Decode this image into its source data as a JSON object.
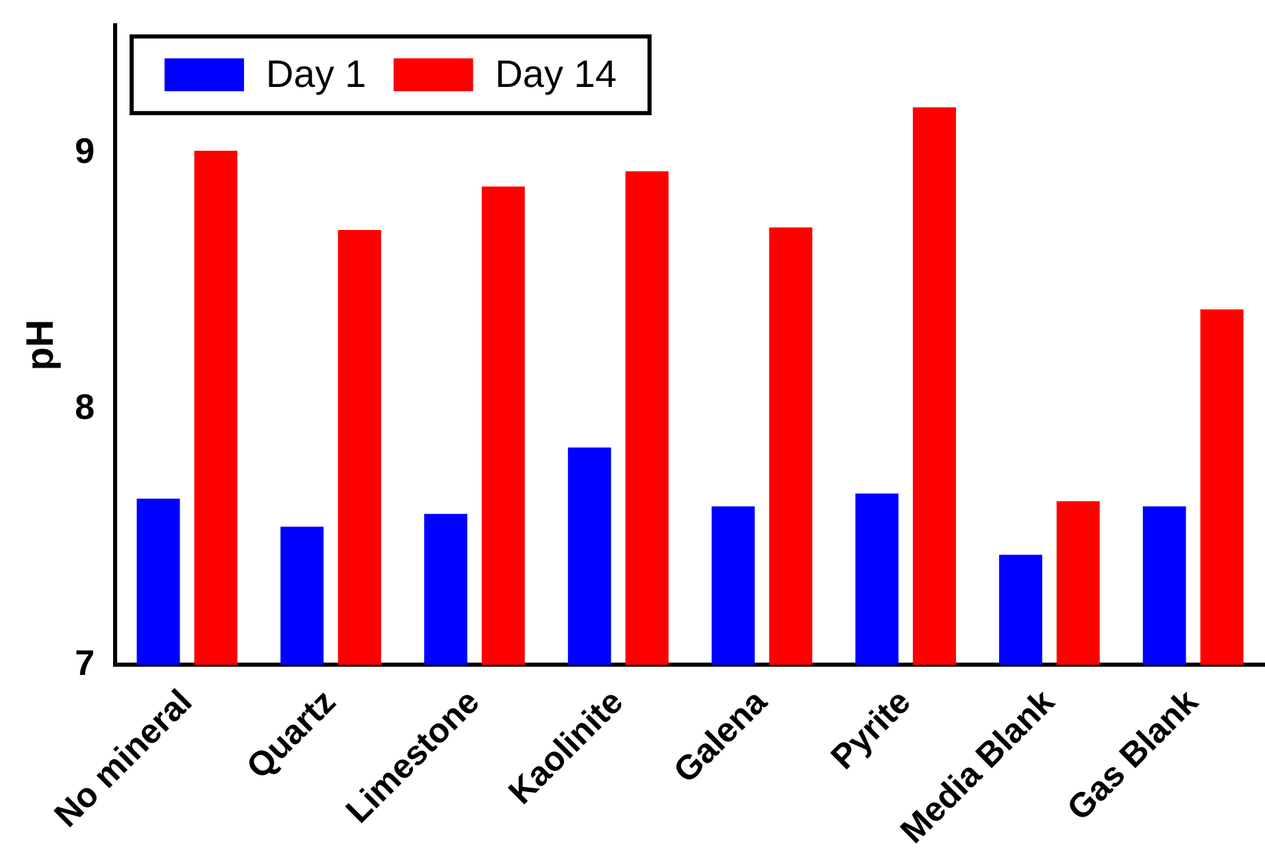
{
  "chart_data": {
    "type": "bar",
    "ylabel": "pH",
    "categories": [
      "No mineral",
      "Quartz",
      "Limestone",
      "Kaolinite",
      "Galena",
      "Pyrite",
      "Media Blank",
      "Gas Blank"
    ],
    "series": [
      {
        "name": "Day 1",
        "color": "#0000ff",
        "values": [
          7.65,
          7.54,
          7.59,
          7.85,
          7.62,
          7.67,
          7.43,
          7.62
        ]
      },
      {
        "name": "Day 14",
        "color": "#ff0000",
        "values": [
          9.01,
          8.7,
          8.87,
          8.93,
          8.71,
          9.18,
          7.64,
          8.39
        ]
      }
    ],
    "ylim": [
      7,
      9.5
    ],
    "yticks": [
      7,
      8,
      9
    ],
    "grid": false,
    "legend": "top left"
  }
}
